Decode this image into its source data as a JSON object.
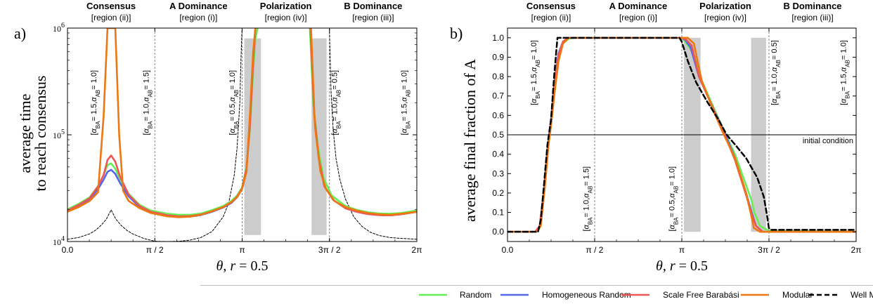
{
  "figure": {
    "legend": [
      {
        "name": "Random",
        "color": "#66ee55",
        "dash": false
      },
      {
        "name": "Homogeneous Random",
        "color": "#5566ee",
        "dash": false
      },
      {
        "name": "Scale Free Barabási",
        "color": "#ee5555",
        "dash": false
      },
      {
        "name": "Modular",
        "color": "#ee7711",
        "dash": false
      },
      {
        "name": "Well Mixed",
        "color": "#000000",
        "dash": true
      }
    ]
  },
  "chart_data": [
    {
      "type": "line",
      "panel_label": "a)",
      "xlabel": "θ, r = 0.5",
      "ylabel": [
        "average time",
        "to reach consensus"
      ],
      "xlim": [
        0,
        6.2832
      ],
      "ylim": [
        10000,
        1000000
      ],
      "yscale": "log",
      "x_ticks": [
        {
          "value": 0,
          "label": "0.0"
        },
        {
          "value": 1.5708,
          "label": "π / 2"
        },
        {
          "value": 3.1416,
          "label": "π"
        },
        {
          "value": 4.7124,
          "label": "3π / 2"
        },
        {
          "value": 6.2832,
          "label": "2π"
        }
      ],
      "y_ticks": [
        {
          "value": 10000,
          "base": "10",
          "exp": "4"
        },
        {
          "value": 100000,
          "base": "10",
          "exp": "5"
        },
        {
          "value": 1000000,
          "base": "10",
          "exp": "6"
        }
      ],
      "regions": [
        {
          "title": "Consensus",
          "sub": "[region (ii)]",
          "x": 0.785
        },
        {
          "title": "A Dominance",
          "sub": "[region (i)]",
          "x": 2.356
        },
        {
          "title": "Polarization",
          "sub": "[region (iv)]",
          "x": 3.927
        },
        {
          "title": "B Dominance",
          "sub": "[region (iii)]",
          "x": 5.498
        }
      ],
      "vlines": [
        1.5708,
        3.1416,
        4.7124
      ],
      "shaded": [
        [
          3.18,
          3.48
        ],
        [
          4.39,
          4.66
        ]
      ],
      "boundary_labels": [
        {
          "x": 0.52,
          "y": 200000,
          "ba": "1.5",
          "ab": "1.0"
        },
        {
          "x": 1.46,
          "y": 200000,
          "ba": "1.0",
          "ab": "1.5"
        },
        {
          "x": 3.01,
          "y": 200000,
          "ba": "0.5",
          "ab": "1.0"
        },
        {
          "x": 4.85,
          "y": 200000,
          "ba": "1.0",
          "ab": "0.5"
        },
        {
          "x": 6.1,
          "y": 200000,
          "ba": "1.5",
          "ab": "1.0"
        }
      ],
      "series": [
        {
          "name": "Well Mixed",
          "x": [
            0,
            0.2,
            0.4,
            0.5,
            0.6,
            0.7,
            0.785,
            0.87,
            0.97,
            1.07,
            1.17,
            1.37,
            1.57,
            1.8,
            2.0,
            2.2,
            2.4,
            2.6,
            2.8,
            2.9,
            3.0,
            3.05,
            3.1,
            3.12,
            3.14
          ],
          "y": [
            10500,
            10900,
            11800,
            12700,
            14100,
            16200,
            19800,
            16200,
            14100,
            12700,
            11800,
            10700,
            10050,
            10000,
            10050,
            10300,
            10900,
            12400,
            17000,
            23000,
            42000,
            75000,
            200000,
            500000,
            1000000
          ]
        },
        {
          "name": "Well Mixed",
          "x": [
            4.71,
            4.74,
            4.78,
            4.83,
            4.9,
            5.0,
            5.15,
            5.3,
            5.45,
            5.6,
            5.8,
            6.0,
            6.2832
          ],
          "y": [
            1000000,
            260000,
            110000,
            60000,
            38000,
            25000,
            17000,
            13800,
            12200,
            11400,
            10900,
            10700,
            10500
          ]
        },
        {
          "name": "Modular",
          "x": [
            0,
            0.2,
            0.4,
            0.55,
            0.65,
            0.72,
            0.785,
            0.86,
            0.93,
            1.0,
            1.1,
            1.3,
            1.5,
            1.8,
            2.0,
            2.2,
            2.4,
            2.6,
            2.8,
            2.95,
            3.05,
            3.14,
            3.22,
            3.28,
            3.34,
            3.38
          ],
          "y": [
            19000,
            21000,
            24000,
            29000,
            150000,
            1000000,
            1000000,
            1000000,
            100000,
            30000,
            24000,
            20500,
            18500,
            17200,
            16900,
            17100,
            17800,
            19200,
            21000,
            23500,
            26000,
            31000,
            45000,
            150000,
            600000,
            1000000
          ]
        },
        {
          "name": "Modular",
          "x": [
            4.38,
            4.45,
            4.55,
            4.65,
            4.8,
            5.0,
            5.2,
            5.4,
            5.6,
            5.8,
            6.0,
            6.2832
          ],
          "y": [
            1000000,
            120000,
            45000,
            31000,
            24000,
            21000,
            19500,
            18500,
            18000,
            17800,
            18200,
            19000
          ]
        },
        {
          "name": "Random",
          "x": [
            0,
            0.2,
            0.4,
            0.55,
            0.65,
            0.72,
            0.785,
            0.86,
            0.95,
            1.1,
            1.3,
            1.5,
            1.8,
            2.0,
            2.2,
            2.4,
            2.6,
            2.8,
            2.95,
            3.05,
            3.14,
            3.22,
            3.28,
            3.34,
            3.38,
            3.42
          ],
          "y": [
            20000,
            22500,
            26000,
            33000,
            42000,
            52000,
            54000,
            48000,
            38000,
            28000,
            22000,
            19500,
            18200,
            17800,
            17800,
            18300,
            19700,
            21500,
            24000,
            27000,
            32000,
            50000,
            110000,
            400000,
            800000,
            1000000
          ]
        },
        {
          "name": "Random",
          "x": [
            4.36,
            4.42,
            4.5,
            4.6,
            4.75,
            5.0,
            5.2,
            5.4,
            5.6,
            5.8,
            6.0,
            6.2832
          ],
          "y": [
            1000000,
            200000,
            80000,
            40000,
            27000,
            21500,
            19800,
            18800,
            18300,
            18200,
            18500,
            19500
          ]
        },
        {
          "name": "Homogeneous Random",
          "x": [
            0,
            0.2,
            0.4,
            0.55,
            0.65,
            0.72,
            0.785,
            0.86,
            0.95,
            1.1,
            1.3,
            1.5,
            1.8,
            2.0,
            2.2,
            2.4,
            2.6,
            2.8,
            2.95,
            3.05,
            3.14,
            3.22,
            3.28,
            3.34,
            3.38
          ],
          "y": [
            19200,
            21500,
            25000,
            31000,
            38000,
            45000,
            47000,
            43000,
            35000,
            26500,
            21000,
            18800,
            17400,
            17000,
            17100,
            17700,
            19000,
            20800,
            23000,
            26000,
            31000,
            48000,
            120000,
            500000,
            1000000
          ]
        },
        {
          "name": "Homogeneous Random",
          "x": [
            4.37,
            4.44,
            4.52,
            4.62,
            4.78,
            5.0,
            5.2,
            5.4,
            5.6,
            5.8,
            6.0,
            6.2832
          ],
          "y": [
            1000000,
            150000,
            60000,
            33000,
            24500,
            20500,
            19000,
            18100,
            17700,
            17600,
            18000,
            19000
          ]
        },
        {
          "name": "Scale Free Barabási",
          "x": [
            0,
            0.2,
            0.4,
            0.55,
            0.65,
            0.72,
            0.785,
            0.86,
            0.95,
            1.1,
            1.3,
            1.5,
            1.8,
            2.0,
            2.2,
            2.4,
            2.6,
            2.8,
            2.95,
            3.05,
            3.14,
            3.22,
            3.28,
            3.34,
            3.38
          ],
          "y": [
            19500,
            22000,
            25500,
            33000,
            42000,
            58000,
            64000,
            56000,
            40000,
            27500,
            21500,
            19000,
            17600,
            17200,
            17300,
            17900,
            19200,
            21000,
            23300,
            26300,
            31500,
            48000,
            120000,
            500000,
            1000000
          ]
        },
        {
          "name": "Scale Free Barabási",
          "x": [
            4.37,
            4.44,
            4.52,
            4.62,
            4.78,
            5.0,
            5.2,
            5.4,
            5.6,
            5.8,
            6.0,
            6.2832
          ],
          "y": [
            1000000,
            150000,
            60000,
            33000,
            24500,
            20500,
            19000,
            18100,
            17700,
            17600,
            18000,
            19000
          ]
        }
      ]
    },
    {
      "type": "line",
      "panel_label": "b)",
      "xlabel": "θ, r = 0.5",
      "ylabel": [
        "average final fraction of A"
      ],
      "xlim": [
        0,
        6.2832
      ],
      "ylim": [
        -0.05,
        1.05
      ],
      "x_ticks": [
        {
          "value": 0,
          "label": "0.0"
        },
        {
          "value": 1.5708,
          "label": "π / 2"
        },
        {
          "value": 3.1416,
          "label": "π"
        },
        {
          "value": 4.7124,
          "label": "3π / 2"
        },
        {
          "value": 6.2832,
          "label": "2π"
        }
      ],
      "y_ticks": [
        0.0,
        0.1,
        0.2,
        0.3,
        0.4,
        0.5,
        0.6,
        0.7,
        0.8,
        0.9,
        1.0
      ],
      "regions": [
        {
          "title": "Consensus",
          "sub": "[region (ii)]",
          "x": 0.785
        },
        {
          "title": "A Dominance",
          "sub": "[region (i)]",
          "x": 2.356
        },
        {
          "title": "Polarization",
          "sub": "[region (iv)]",
          "x": 3.927
        },
        {
          "title": "B Dominance",
          "sub": "[region (iii)]",
          "x": 5.498
        }
      ],
      "vlines": [
        1.5708,
        3.1416,
        4.7124
      ],
      "hline": {
        "y": 0.5,
        "label": "initial condition"
      },
      "shaded": [
        [
          3.18,
          3.48
        ],
        [
          4.39,
          4.66
        ]
      ],
      "boundary_labels": [
        {
          "x": 0.52,
          "y": 0.82,
          "ba": "1.5",
          "ab": "1.0"
        },
        {
          "x": 1.46,
          "y": 0.17,
          "ba": "1.0",
          "ab": "1.5"
        },
        {
          "x": 3.01,
          "y": 0.17,
          "ba": "0.5",
          "ab": "1.0"
        },
        {
          "x": 4.85,
          "y": 0.82,
          "ba": "1.0",
          "ab": "0.5"
        },
        {
          "x": 6.1,
          "y": 0.82,
          "ba": "1.5",
          "ab": "1.0"
        }
      ],
      "series": [
        {
          "name": "Random",
          "x": [
            0,
            0.5,
            0.58,
            0.66,
            0.72,
            0.785,
            0.85,
            0.92,
            1.0,
            1.1,
            1.2,
            1.3,
            3.14,
            3.2,
            3.35,
            3.5,
            3.7,
            3.9,
            4.1,
            4.3,
            4.4,
            4.45,
            4.55,
            4.71,
            6.2832
          ],
          "y": [
            0.0,
            0.0,
            0.02,
            0.2,
            0.4,
            0.55,
            0.75,
            0.9,
            0.97,
            0.995,
            1.0,
            1.0,
            1.0,
            0.98,
            0.92,
            0.78,
            0.65,
            0.52,
            0.4,
            0.24,
            0.16,
            0.1,
            0.03,
            0.005,
            0.0
          ]
        },
        {
          "name": "Homogeneous Random",
          "x": [
            0,
            0.5,
            0.58,
            0.66,
            0.72,
            0.785,
            0.85,
            0.92,
            1.0,
            1.1,
            1.2,
            3.14,
            3.2,
            3.3,
            3.45,
            3.7,
            3.9,
            4.1,
            4.3,
            4.4,
            4.48,
            4.6,
            6.2832
          ],
          "y": [
            0.0,
            0.0,
            0.03,
            0.22,
            0.42,
            0.58,
            0.78,
            0.92,
            0.98,
            1.0,
            1.0,
            1.0,
            0.99,
            0.95,
            0.8,
            0.64,
            0.52,
            0.38,
            0.2,
            0.1,
            0.03,
            0.0,
            0.0
          ]
        },
        {
          "name": "Scale Free Barabási",
          "x": [
            0,
            0.5,
            0.58,
            0.66,
            0.72,
            0.785,
            0.85,
            0.92,
            1.0,
            1.1,
            1.2,
            3.14,
            3.22,
            3.32,
            3.45,
            3.7,
            3.9,
            4.1,
            4.3,
            4.4,
            4.48,
            4.6,
            6.2832
          ],
          "y": [
            0.0,
            0.0,
            0.03,
            0.22,
            0.42,
            0.56,
            0.76,
            0.91,
            0.98,
            1.0,
            1.0,
            1.0,
            0.99,
            0.96,
            0.8,
            0.64,
            0.51,
            0.37,
            0.19,
            0.09,
            0.03,
            0.0,
            0.0
          ]
        },
        {
          "name": "Modular",
          "x": [
            0,
            0.52,
            0.6,
            0.68,
            0.74,
            0.785,
            0.85,
            0.92,
            1.0,
            1.1,
            1.2,
            3.14,
            3.25,
            3.36,
            3.5,
            3.7,
            3.9,
            4.1,
            4.3,
            4.38,
            4.44,
            4.55,
            6.2832
          ],
          "y": [
            0.0,
            0.0,
            0.03,
            0.25,
            0.45,
            0.55,
            0.72,
            0.88,
            0.97,
            1.0,
            1.0,
            1.0,
            1.0,
            0.97,
            0.78,
            0.63,
            0.5,
            0.38,
            0.2,
            0.1,
            0.02,
            0.0,
            0.0
          ]
        },
        {
          "name": "Well Mixed",
          "x": [
            0,
            0.55,
            0.6,
            0.66,
            0.72,
            0.785,
            0.84,
            0.9,
            3.1,
            3.14,
            3.25,
            3.4,
            3.6,
            3.8,
            3.95,
            4.1,
            4.3,
            4.5,
            4.62,
            4.68,
            4.71,
            4.75,
            6.2832
          ],
          "y": [
            0.0,
            0.0,
            0.06,
            0.25,
            0.45,
            0.58,
            0.8,
            1.0,
            1.0,
            0.98,
            0.88,
            0.77,
            0.67,
            0.58,
            0.5,
            0.45,
            0.38,
            0.28,
            0.18,
            0.08,
            0.02,
            0.01,
            0.01
          ]
        }
      ]
    }
  ]
}
